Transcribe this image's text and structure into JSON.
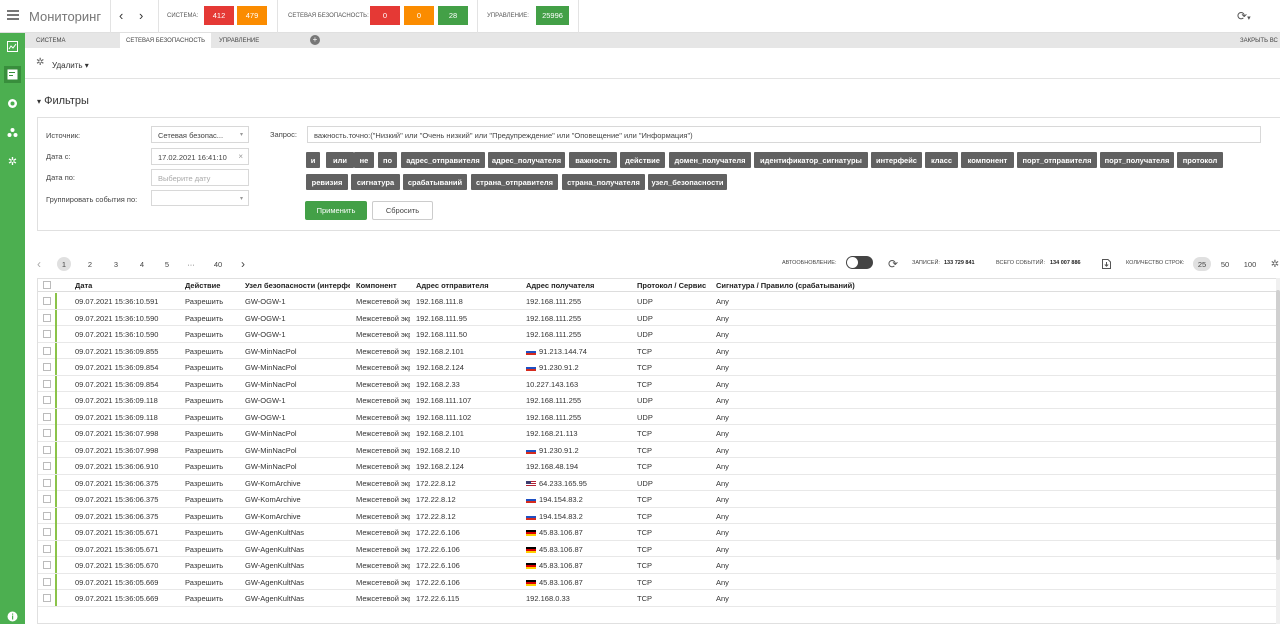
{
  "app": {
    "title": "Мониторинг"
  },
  "topbar": {
    "system_label": "СИСТЕМА:",
    "system_counts": [
      "412",
      "479"
    ],
    "netsec_label": "СЕТЕВАЯ БЕЗОПАСНОСТЬ:",
    "netsec_counts": [
      "0",
      "0",
      "28"
    ],
    "mgmt_label": "УПРАВЛЕНИЕ:",
    "mgmt_counts": [
      "25996"
    ],
    "colors": {
      "red": "#e53935",
      "orange": "#fb8c00",
      "green": "#43a047"
    }
  },
  "tabs": {
    "items": [
      "СИСТЕМА",
      "СЕТЕВАЯ БЕЗОПАСНОСТЬ",
      "УПРАВЛЕНИЕ"
    ],
    "active_index": 1,
    "close_all": "ЗАКРЫТЬ ВС"
  },
  "toolbar": {
    "delete_label": "Удалить"
  },
  "filters": {
    "title": "Фильтры",
    "source_label": "Источник:",
    "source_value": "Сетевая безопас...",
    "date_from_label": "Дата с:",
    "date_from_value": "17.02.2021 16:41:10",
    "date_to_label": "Дата по:",
    "date_to_placeholder": "Выберите дату",
    "group_label": "Группировать события по:",
    "query_label": "Запрос:",
    "query_value": "важность.точно:(\"Низкий\" или \"Очень низкий\" или \"Предупреждение\" или \"Оповещение\" или \"Информация\")",
    "tags": [
      "и",
      "или",
      "не",
      "по",
      "адрес_отправителя",
      "адрес_получателя",
      "важность",
      "действие",
      "домен_получателя",
      "идентификатор_сигнатуры",
      "интерфейс",
      "класс",
      "компонент",
      "порт_отправителя",
      "порт_получателя",
      "протокол",
      "ревизия",
      "сигнатура",
      "срабатываний",
      "страна_отправителя",
      "страна_получателя",
      "узел_безопасности"
    ],
    "apply_label": "Применить",
    "reset_label": "Сбросить"
  },
  "pagination": {
    "prev": "‹",
    "pages": [
      "1",
      "2",
      "3",
      "4",
      "5",
      "···",
      "40"
    ],
    "next": "›",
    "current": "1"
  },
  "controls": {
    "autorefresh_label": "АВТООБНОВЛЕНИЕ:",
    "autorefresh_on": false,
    "records_label": "ЗАПИСЕЙ:",
    "records_value": "133 729 841",
    "total_label": "ВСЕГО СОБЫТИЙ:",
    "total_value": "134 007 886",
    "rows_label": "КОЛИЧЕСТВО СТРОК:",
    "rows_options": [
      "25",
      "50",
      "100"
    ],
    "rows_selected": "25"
  },
  "table": {
    "columns": [
      "Дата",
      "Действие",
      "Узел безопасности (интерфейс)",
      "Компонент",
      "Адрес отправителя",
      "Адрес получателя",
      "Протокол / Сервис",
      "Сигнатура / Правило (срабатываний)"
    ],
    "rows": [
      {
        "date": "09.07.2021 15:36:10.591",
        "action": "Разрешить",
        "node": "GW-OGW-1",
        "component": "Межсетевой экран",
        "src": "192.168.111.8",
        "dst": "192.168.111.255",
        "flag": "",
        "proto": "UDP",
        "sig": "Any"
      },
      {
        "date": "09.07.2021 15:36:10.590",
        "action": "Разрешить",
        "node": "GW-OGW-1",
        "component": "Межсетевой экран",
        "src": "192.168.111.95",
        "dst": "192.168.111.255",
        "flag": "",
        "proto": "UDP",
        "sig": "Any"
      },
      {
        "date": "09.07.2021 15:36:10.590",
        "action": "Разрешить",
        "node": "GW-OGW-1",
        "component": "Межсетевой экран",
        "src": "192.168.111.50",
        "dst": "192.168.111.255",
        "flag": "",
        "proto": "UDP",
        "sig": "Any"
      },
      {
        "date": "09.07.2021 15:36:09.855",
        "action": "Разрешить",
        "node": "GW-MinNacPol",
        "component": "Межсетевой экран",
        "src": "192.168.2.101",
        "dst": "91.213.144.74",
        "flag": "ru",
        "proto": "TCP",
        "sig": "Any"
      },
      {
        "date": "09.07.2021 15:36:09.854",
        "action": "Разрешить",
        "node": "GW-MinNacPol",
        "component": "Межсетевой экран",
        "src": "192.168.2.124",
        "dst": "91.230.91.2",
        "flag": "ru",
        "proto": "TCP",
        "sig": "Any"
      },
      {
        "date": "09.07.2021 15:36:09.854",
        "action": "Разрешить",
        "node": "GW-MinNacPol",
        "component": "Межсетевой экран",
        "src": "192.168.2.33",
        "dst": "10.227.143.163",
        "flag": "",
        "proto": "TCP",
        "sig": "Any"
      },
      {
        "date": "09.07.2021 15:36:09.118",
        "action": "Разрешить",
        "node": "GW-OGW-1",
        "component": "Межсетевой экран",
        "src": "192.168.111.107",
        "dst": "192.168.111.255",
        "flag": "",
        "proto": "UDP",
        "sig": "Any"
      },
      {
        "date": "09.07.2021 15:36:09.118",
        "action": "Разрешить",
        "node": "GW-OGW-1",
        "component": "Межсетевой экран",
        "src": "192.168.111.102",
        "dst": "192.168.111.255",
        "flag": "",
        "proto": "UDP",
        "sig": "Any"
      },
      {
        "date": "09.07.2021 15:36:07.998",
        "action": "Разрешить",
        "node": "GW-MinNacPol",
        "component": "Межсетевой экран",
        "src": "192.168.2.101",
        "dst": "192.168.21.113",
        "flag": "",
        "proto": "TCP",
        "sig": "Any"
      },
      {
        "date": "09.07.2021 15:36:07.998",
        "action": "Разрешить",
        "node": "GW-MinNacPol",
        "component": "Межсетевой экран",
        "src": "192.168.2.10",
        "dst": "91.230.91.2",
        "flag": "ru",
        "proto": "TCP",
        "sig": "Any"
      },
      {
        "date": "09.07.2021 15:36:06.910",
        "action": "Разрешить",
        "node": "GW-MinNacPol",
        "component": "Межсетевой экран",
        "src": "192.168.2.124",
        "dst": "192.168.48.194",
        "flag": "",
        "proto": "TCP",
        "sig": "Any"
      },
      {
        "date": "09.07.2021 15:36:06.375",
        "action": "Разрешить",
        "node": "GW-KomArchive",
        "component": "Межсетевой экран",
        "src": "172.22.8.12",
        "dst": "64.233.165.95",
        "flag": "us",
        "proto": "UDP",
        "sig": "Any"
      },
      {
        "date": "09.07.2021 15:36:06.375",
        "action": "Разрешить",
        "node": "GW-KomArchive",
        "component": "Межсетевой экран",
        "src": "172.22.8.12",
        "dst": "194.154.83.2",
        "flag": "ru",
        "proto": "TCP",
        "sig": "Any"
      },
      {
        "date": "09.07.2021 15:36:06.375",
        "action": "Разрешить",
        "node": "GW-KomArchive",
        "component": "Межсетевой экран",
        "src": "172.22.8.12",
        "dst": "194.154.83.2",
        "flag": "ru",
        "proto": "TCP",
        "sig": "Any"
      },
      {
        "date": "09.07.2021 15:36:05.671",
        "action": "Разрешить",
        "node": "GW-AgenKultNas",
        "component": "Межсетевой экран",
        "src": "172.22.6.106",
        "dst": "45.83.106.87",
        "flag": "de",
        "proto": "TCP",
        "sig": "Any"
      },
      {
        "date": "09.07.2021 15:36:05.671",
        "action": "Разрешить",
        "node": "GW-AgenKultNas",
        "component": "Межсетевой экран",
        "src": "172.22.6.106",
        "dst": "45.83.106.87",
        "flag": "de",
        "proto": "TCP",
        "sig": "Any"
      },
      {
        "date": "09.07.2021 15:36:05.670",
        "action": "Разрешить",
        "node": "GW-AgenKultNas",
        "component": "Межсетевой экран",
        "src": "172.22.6.106",
        "dst": "45.83.106.87",
        "flag": "de",
        "proto": "TCP",
        "sig": "Any"
      },
      {
        "date": "09.07.2021 15:36:05.669",
        "action": "Разрешить",
        "node": "GW-AgenKultNas",
        "component": "Межсетевой экран",
        "src": "172.22.6.106",
        "dst": "45.83.106.87",
        "flag": "de",
        "proto": "TCP",
        "sig": "Any"
      },
      {
        "date": "09.07.2021 15:36:05.669",
        "action": "Разрешить",
        "node": "GW-AgenKultNas",
        "component": "Межсетевой экран",
        "src": "172.22.6.115",
        "dst": "192.168.0.33",
        "flag": "",
        "proto": "TCP",
        "sig": "Any"
      }
    ]
  },
  "icons": {
    "sidebar": [
      "dashboard-icon",
      "events-icon",
      "shield-icon",
      "network-icon",
      "settings-icon",
      "info-icon"
    ]
  }
}
